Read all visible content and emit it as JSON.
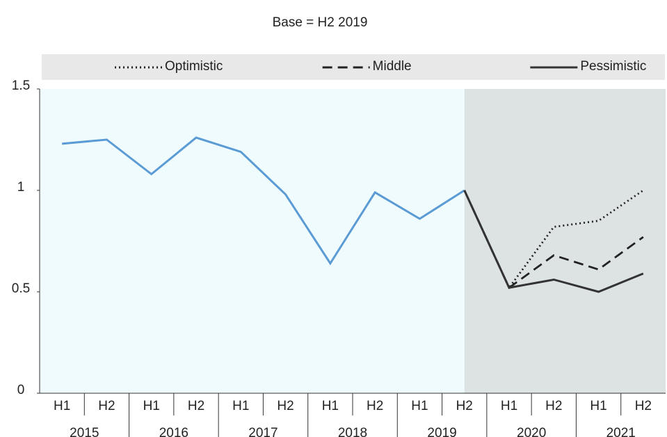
{
  "chart_data": {
    "type": "line",
    "title": "Base = H2 2019",
    "categories": [
      "H1",
      "H2",
      "H1",
      "H2",
      "H1",
      "H2",
      "H1",
      "H2",
      "H1",
      "H2",
      "H1",
      "H2",
      "H1",
      "H2"
    ],
    "years": [
      "2015",
      "2016",
      "2017",
      "2018",
      "2019",
      "2020",
      "2021"
    ],
    "series": [
      {
        "color": "#5b9bd5",
        "dash": "solid",
        "values": [
          1.23,
          1.25,
          1.08,
          1.26,
          1.19,
          0.98,
          0.64,
          0.99,
          0.86,
          1.0,
          null,
          null,
          null,
          null
        ]
      },
      {
        "name": "Optimistic",
        "color": "#222222",
        "dash": "dotted",
        "values": [
          null,
          null,
          null,
          null,
          null,
          null,
          null,
          null,
          null,
          1.0,
          0.52,
          0.82,
          0.85,
          1.0
        ]
      },
      {
        "name": "Middle",
        "color": "#222222",
        "dash": "dashed",
        "values": [
          null,
          null,
          null,
          null,
          null,
          null,
          null,
          null,
          null,
          1.0,
          0.52,
          0.68,
          0.61,
          0.77
        ]
      },
      {
        "name": "Pessimistic",
        "color": "#333333",
        "dash": "solid",
        "values": [
          null,
          null,
          null,
          null,
          null,
          null,
          null,
          null,
          null,
          1.0,
          0.52,
          0.56,
          0.5,
          0.59
        ]
      }
    ],
    "ylim": [
      0,
      1.5
    ],
    "yticks": [
      0,
      0.5,
      1,
      1.5
    ],
    "legend": "top"
  }
}
